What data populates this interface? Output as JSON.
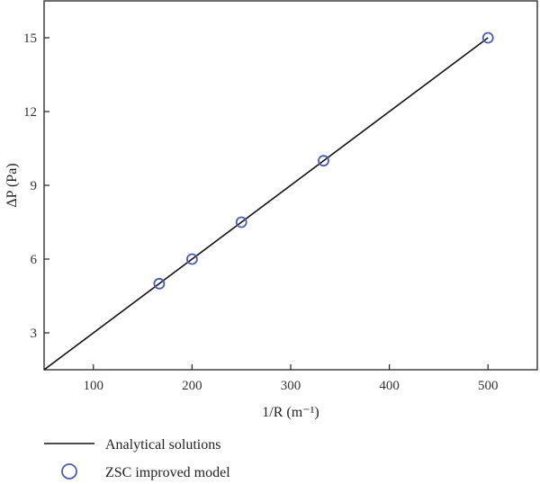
{
  "chart_data": {
    "type": "line",
    "xlabel": "1/R (m⁻¹)",
    "ylabel": "ΔP (Pa)",
    "xlim": [
      50,
      550
    ],
    "ylim": [
      1.5,
      16.5
    ],
    "x_ticks": [
      100,
      200,
      300,
      400,
      500
    ],
    "y_ticks": [
      3,
      6,
      9,
      12,
      15
    ],
    "grid": false,
    "legend_position": "bottom",
    "series": [
      {
        "name": "Analytical solutions",
        "style": "line",
        "color": "#111111",
        "x": [
          50,
          500
        ],
        "y": [
          1.5,
          15
        ]
      },
      {
        "name": "ZSC improved model",
        "style": "markers",
        "marker": "open-circle",
        "color": "#4a5db3",
        "x": [
          166.7,
          200,
          250,
          333.3,
          500
        ],
        "y": [
          5,
          6,
          7.5,
          10,
          15
        ]
      }
    ]
  }
}
